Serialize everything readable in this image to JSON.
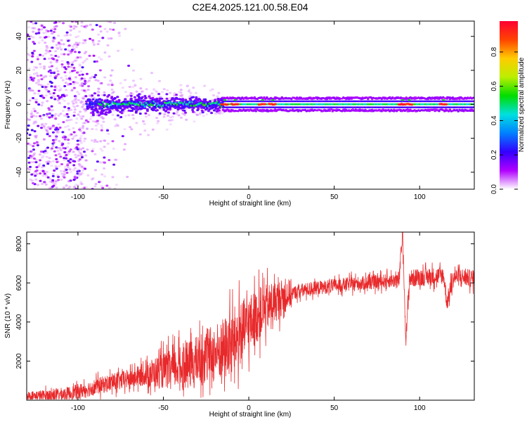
{
  "title": "C2E4.2025.121.00.58.E04",
  "colors": {
    "snr_line": "#e8292b",
    "frame": "#000000"
  },
  "chart_data": [
    {
      "type": "heatmap",
      "name": "spectrogram",
      "xlabel": "Height of straight line (km)",
      "ylabel": "Frequency (Hz)",
      "xlim": [
        -130,
        132
      ],
      "ylim": [
        -50,
        49
      ],
      "xticks": [
        -100,
        -50,
        0,
        50,
        100
      ],
      "yticks": [
        -40,
        -20,
        0,
        20,
        40
      ],
      "description_values": {
        "band_center_hz": 0,
        "noise_region_x": [
          -130,
          -95
        ],
        "broad_band_x": [
          -95,
          -15
        ],
        "narrow_band_x": [
          -15,
          132
        ],
        "peak_spots_x": [
          -14,
          -8,
          8,
          14,
          90,
          94,
          114
        ]
      }
    },
    {
      "type": "colorbar",
      "name": "amplitude-colorbar",
      "label": "Normalized spectral amplitude",
      "range": [
        0,
        0.98
      ],
      "ticks": [
        "0.0",
        "0.2",
        "0.4",
        "0.6",
        "0.8"
      ],
      "tick_values": [
        0.0,
        0.2,
        0.4,
        0.6,
        0.8
      ],
      "stops": [
        "#ffffff",
        "#b000ff",
        "#3300ff",
        "#0080ff",
        "#00e0e0",
        "#00dd00",
        "#bbee00",
        "#ffcc00",
        "#ff4400",
        "#ff0033"
      ]
    },
    {
      "type": "line",
      "name": "snr",
      "xlabel": "Height of straight line (km)",
      "ylabel": "SNR (10 * v/v)",
      "xlim": [
        -130,
        132
      ],
      "ylim": [
        0,
        8600
      ],
      "xticks": [
        -100,
        -50,
        0,
        50,
        100
      ],
      "yticks": [
        2000,
        4000,
        6000,
        8000
      ],
      "series": [
        {
          "name": "SNR",
          "x": [
            -130,
            -115,
            -105,
            -95,
            -85,
            -75,
            -65,
            -55,
            -45,
            -35,
            -28,
            -20,
            -15,
            -10,
            -5,
            0,
            5,
            10,
            15,
            20,
            25,
            30,
            40,
            50,
            60,
            70,
            80,
            88,
            90,
            92,
            94,
            100,
            105,
            110,
            114,
            116,
            120,
            125,
            132
          ],
          "y": [
            200,
            250,
            350,
            550,
            800,
            1000,
            1200,
            1400,
            1600,
            1800,
            2100,
            2400,
            2600,
            2900,
            3400,
            3900,
            4300,
            4700,
            5000,
            5300,
            5450,
            5600,
            5750,
            5850,
            5950,
            6000,
            6100,
            6150,
            8600,
            3000,
            6200,
            6300,
            6300,
            6350,
            6400,
            5000,
            6300,
            6300,
            6200
          ]
        }
      ]
    }
  ]
}
